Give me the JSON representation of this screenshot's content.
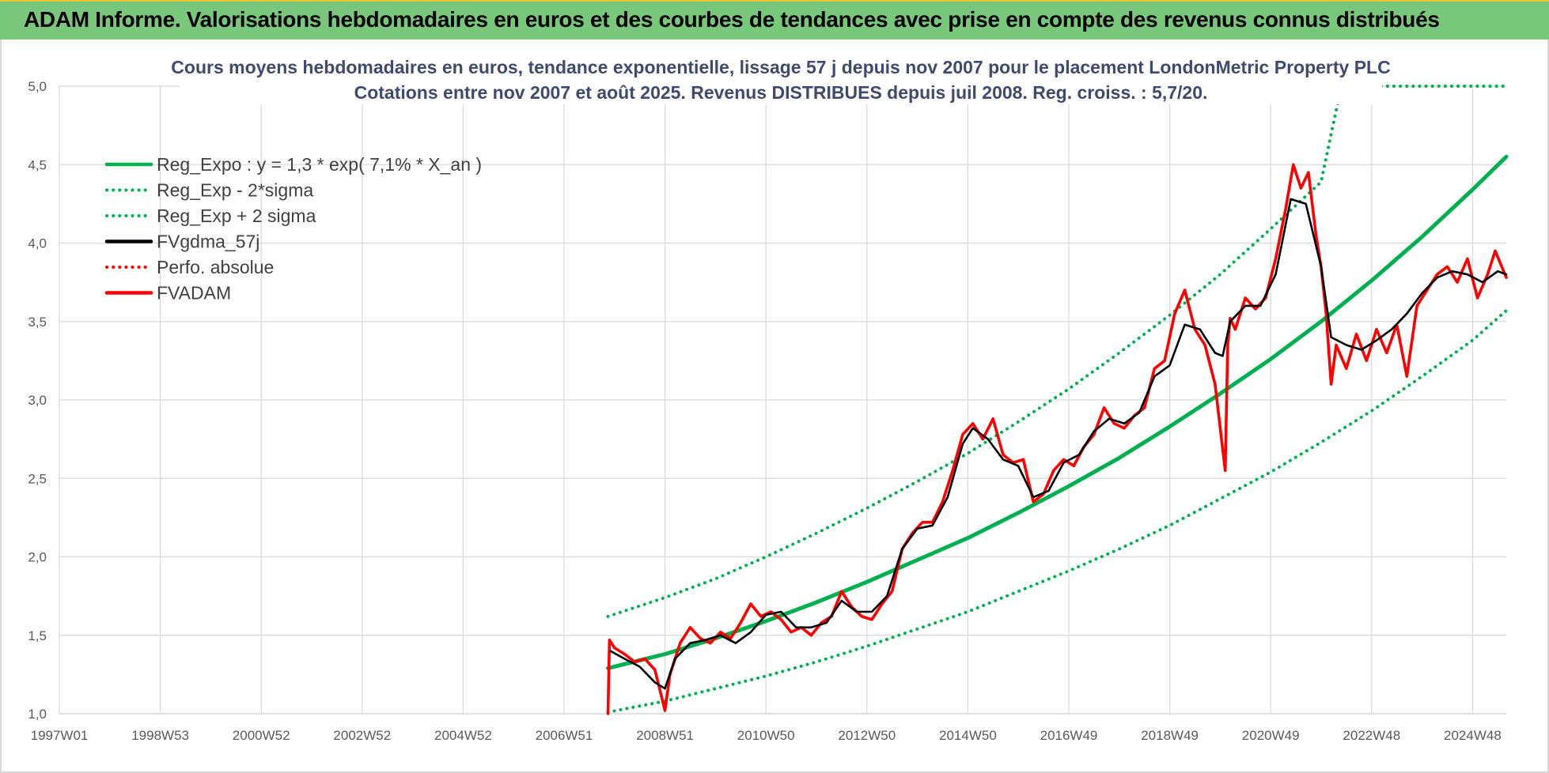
{
  "header": {
    "title": "ADAM Informe. Valorisations hebdomadaires en euros et des courbes de tendances avec prise en compte des revenus connus distribués"
  },
  "chart_data": {
    "type": "line",
    "title": "Cours moyens hebdomadaires en euros, tendance exponentielle, lissage 57 j depuis nov 2007  pour le placement LondonMetric Property PLC",
    "subtitle": "Cotations entre nov 2007 et août 2025. Revenus DISTRIBUES depuis juil 2008. Reg. croiss. : 5,7/20.",
    "xlabel": "",
    "ylabel": "",
    "x_ticks": [
      "1997W01",
      "1998W53",
      "2000W52",
      "2002W52",
      "2004W52",
      "2006W51",
      "2008W51",
      "2010W50",
      "2012W50",
      "2014W50",
      "2016W49",
      "2018W49",
      "2020W49",
      "2022W48",
      "2024W48"
    ],
    "y_ticks": [
      "1,0",
      "1,5",
      "2,0",
      "2,5",
      "3,0",
      "3,5",
      "4,0",
      "4,5",
      "5,0"
    ],
    "ylim": [
      1.0,
      5.0
    ],
    "xlim": [
      1997.0,
      2025.67
    ],
    "grid": true,
    "legend_position": "top-left",
    "colors": {
      "reg_expo": "#00b050",
      "reg_bounds": "#00b050",
      "fvgdma": "#000000",
      "perfo": "#ff0000",
      "fvadam": "#ff0000"
    },
    "series": [
      {
        "name": "Reg_Expo : y = 1,3 * exp( 7,1% *  X_an )",
        "style": "solid-thick",
        "x": [
          2007.87,
          2009,
          2010,
          2011,
          2012,
          2013,
          2014,
          2015,
          2016,
          2017,
          2018,
          2019,
          2020,
          2021,
          2022,
          2023,
          2024,
          2025,
          2025.67
        ],
        "y": [
          1.29,
          1.38,
          1.48,
          1.59,
          1.71,
          1.84,
          1.98,
          2.12,
          2.28,
          2.45,
          2.63,
          2.83,
          3.04,
          3.26,
          3.5,
          3.76,
          4.04,
          4.34,
          4.55
        ]
      },
      {
        "name": "Reg_Exp - 2*sigma",
        "style": "dotted",
        "x": [
          2007.87,
          2009,
          2010,
          2011,
          2012,
          2013,
          2014,
          2015,
          2016,
          2017,
          2018,
          2019,
          2020,
          2021,
          2022,
          2023,
          2024,
          2025,
          2025.67
        ],
        "y": [
          1.01,
          1.08,
          1.16,
          1.24,
          1.33,
          1.43,
          1.54,
          1.65,
          1.78,
          1.91,
          2.05,
          2.2,
          2.37,
          2.54,
          2.73,
          2.93,
          3.15,
          3.38,
          3.57
        ]
      },
      {
        "name": "Reg_Exp + 2 sigma",
        "style": "dotted",
        "x": [
          2007.87,
          2009,
          2010,
          2011,
          2012,
          2013,
          2014,
          2015,
          2016,
          2017,
          2018,
          2019,
          2020,
          2021,
          2022,
          2022.4,
          2023,
          2024,
          2025,
          2025.67
        ],
        "y": [
          1.62,
          1.74,
          1.86,
          2.0,
          2.15,
          2.31,
          2.48,
          2.66,
          2.86,
          3.07,
          3.3,
          3.54,
          3.8,
          4.09,
          4.39,
          5.0,
          5.0,
          5.0,
          5.0,
          5.0
        ]
      },
      {
        "name": "FVgdma_57j",
        "style": "solid",
        "x": [
          2007.92,
          2008.2,
          2008.5,
          2008.8,
          2009.0,
          2009.2,
          2009.5,
          2009.8,
          2010.1,
          2010.4,
          2010.7,
          2011.0,
          2011.3,
          2011.6,
          2011.9,
          2012.2,
          2012.5,
          2012.8,
          2013.1,
          2013.4,
          2013.7,
          2014.0,
          2014.3,
          2014.6,
          2014.9,
          2015.1,
          2015.4,
          2015.7,
          2016.0,
          2016.3,
          2016.6,
          2016.9,
          2017.2,
          2017.5,
          2017.8,
          2018.1,
          2018.4,
          2018.7,
          2019.0,
          2019.3,
          2019.6,
          2019.9,
          2020.05,
          2020.2,
          2020.5,
          2020.8,
          2021.1,
          2021.4,
          2021.7,
          2022.0,
          2022.2,
          2022.5,
          2022.8,
          2023.1,
          2023.4,
          2023.7,
          2024.0,
          2024.3,
          2024.6,
          2024.9,
          2025.2,
          2025.5,
          2025.67
        ],
        "y": [
          1.4,
          1.35,
          1.3,
          1.2,
          1.16,
          1.35,
          1.45,
          1.47,
          1.5,
          1.45,
          1.52,
          1.63,
          1.65,
          1.55,
          1.55,
          1.58,
          1.72,
          1.65,
          1.65,
          1.75,
          2.05,
          2.18,
          2.2,
          2.38,
          2.72,
          2.82,
          2.75,
          2.62,
          2.58,
          2.38,
          2.42,
          2.6,
          2.65,
          2.8,
          2.88,
          2.85,
          2.92,
          3.15,
          3.22,
          3.48,
          3.45,
          3.3,
          3.28,
          3.5,
          3.6,
          3.6,
          3.8,
          4.28,
          4.25,
          3.85,
          3.4,
          3.35,
          3.32,
          3.38,
          3.45,
          3.55,
          3.68,
          3.78,
          3.82,
          3.8,
          3.75,
          3.82,
          3.8
        ]
      },
      {
        "name": "Perfo. absolue",
        "style": "dotted",
        "x": [],
        "y": []
      },
      {
        "name": "FVADAM",
        "style": "solid-thick",
        "x": [
          2007.87,
          2007.9,
          2008.0,
          2008.2,
          2008.4,
          2008.6,
          2008.8,
          2008.9,
          2009.0,
          2009.1,
          2009.3,
          2009.5,
          2009.7,
          2009.9,
          2010.1,
          2010.3,
          2010.5,
          2010.7,
          2010.9,
          2011.1,
          2011.3,
          2011.5,
          2011.7,
          2011.9,
          2012.1,
          2012.3,
          2012.5,
          2012.7,
          2012.9,
          2013.1,
          2013.3,
          2013.5,
          2013.7,
          2013.9,
          2014.1,
          2014.3,
          2014.5,
          2014.7,
          2014.9,
          2015.1,
          2015.3,
          2015.5,
          2015.7,
          2015.9,
          2016.1,
          2016.3,
          2016.5,
          2016.7,
          2016.9,
          2017.1,
          2017.3,
          2017.5,
          2017.7,
          2017.9,
          2018.1,
          2018.3,
          2018.5,
          2018.7,
          2018.9,
          2019.1,
          2019.3,
          2019.5,
          2019.7,
          2019.9,
          2020.1,
          2020.15,
          2020.2,
          2020.3,
          2020.5,
          2020.7,
          2020.9,
          2021.1,
          2021.3,
          2021.45,
          2021.6,
          2021.75,
          2021.9,
          2022.0,
          2022.1,
          2022.2,
          2022.3,
          2022.5,
          2022.7,
          2022.9,
          2023.1,
          2023.3,
          2023.5,
          2023.7,
          2023.9,
          2024.1,
          2024.3,
          2024.5,
          2024.7,
          2024.9,
          2025.1,
          2025.3,
          2025.45,
          2025.67
        ],
        "y": [
          1.0,
          1.47,
          1.42,
          1.38,
          1.33,
          1.35,
          1.28,
          1.15,
          1.02,
          1.25,
          1.45,
          1.55,
          1.48,
          1.45,
          1.52,
          1.48,
          1.58,
          1.7,
          1.62,
          1.65,
          1.6,
          1.52,
          1.55,
          1.5,
          1.58,
          1.62,
          1.78,
          1.68,
          1.62,
          1.6,
          1.7,
          1.78,
          2.05,
          2.15,
          2.22,
          2.22,
          2.35,
          2.55,
          2.78,
          2.85,
          2.75,
          2.88,
          2.65,
          2.6,
          2.62,
          2.35,
          2.4,
          2.55,
          2.62,
          2.58,
          2.7,
          2.78,
          2.95,
          2.85,
          2.82,
          2.9,
          2.95,
          3.2,
          3.25,
          3.55,
          3.7,
          3.45,
          3.35,
          3.1,
          2.55,
          3.35,
          3.52,
          3.45,
          3.65,
          3.58,
          3.65,
          3.9,
          4.22,
          4.5,
          4.35,
          4.45,
          4.05,
          3.85,
          3.55,
          3.1,
          3.35,
          3.2,
          3.42,
          3.25,
          3.45,
          3.3,
          3.48,
          3.15,
          3.6,
          3.7,
          3.8,
          3.85,
          3.75,
          3.9,
          3.65,
          3.8,
          3.95,
          3.78
        ]
      }
    ]
  }
}
